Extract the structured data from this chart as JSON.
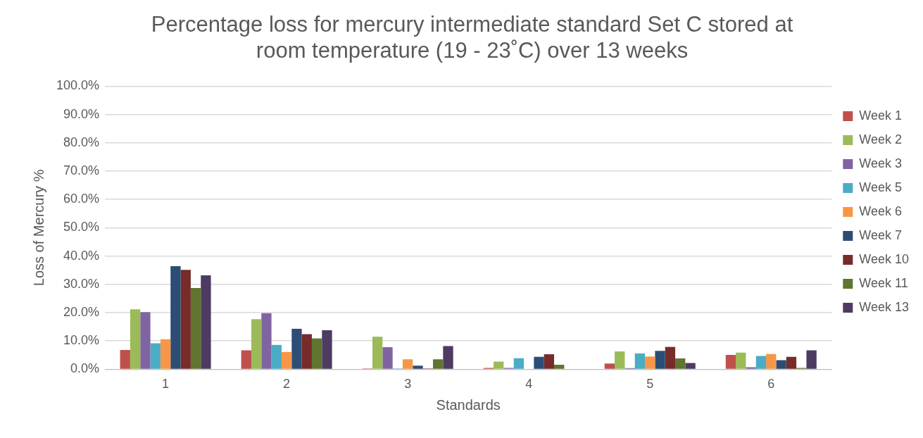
{
  "chart_data": {
    "type": "bar",
    "title": [
      "Percentage loss for mercury intermediate standard Set C stored at",
      "room temperature (19 - 23˚C) over 13 weeks"
    ],
    "xlabel": "Standards",
    "ylabel": "Loss of Mercury %",
    "categories": [
      "1",
      "2",
      "3",
      "4",
      "5",
      "6"
    ],
    "series": [
      {
        "name": "Week 1",
        "color": "#c0504d",
        "values": [
          6.8,
          6.7,
          0.3,
          0.5,
          2.0,
          5.1
        ]
      },
      {
        "name": "Week 2",
        "color": "#9bbb59",
        "values": [
          21.2,
          17.7,
          11.5,
          2.7,
          6.3,
          5.9
        ]
      },
      {
        "name": "Week 3",
        "color": "#8064a2",
        "values": [
          20.2,
          19.8,
          7.8,
          0.5,
          0.4,
          0.7
        ]
      },
      {
        "name": "Week 5",
        "color": "#4bacc6",
        "values": [
          9.2,
          8.6,
          0.3,
          3.9,
          5.6,
          4.7
        ]
      },
      {
        "name": "Week 6",
        "color": "#f79646",
        "values": [
          10.6,
          6.1,
          3.5,
          0,
          4.5,
          5.4
        ]
      },
      {
        "name": "Week 7",
        "color": "#2c4d75",
        "values": [
          36.4,
          14.3,
          1.3,
          4.4,
          6.5,
          3.2
        ]
      },
      {
        "name": "Week 10",
        "color": "#772c2a",
        "values": [
          35.1,
          12.4,
          0.3,
          5.3,
          7.9,
          4.4
        ]
      },
      {
        "name": "Week 11",
        "color": "#5f7530",
        "values": [
          28.7,
          10.9,
          3.5,
          1.6,
          3.8,
          0.5
        ]
      },
      {
        "name": "Week 13",
        "color": "#4d3b62",
        "values": [
          33.2,
          13.8,
          8.2,
          null,
          2.2,
          6.7
        ]
      }
    ],
    "ylim": [
      0,
      100
    ],
    "yticks": [
      {
        "value": 0,
        "label": "0.0%"
      },
      {
        "value": 10,
        "label": "10.0%"
      },
      {
        "value": 20,
        "label": "20.0%"
      },
      {
        "value": 30,
        "label": "30.0%"
      },
      {
        "value": 40,
        "label": "40.0%"
      },
      {
        "value": 50,
        "label": "50.0%"
      },
      {
        "value": 60,
        "label": "60.0%"
      },
      {
        "value": 70,
        "label": "70.0%"
      },
      {
        "value": 80,
        "label": "80.0%"
      },
      {
        "value": 90,
        "label": "90.0%"
      },
      {
        "value": 100,
        "label": "100.0%"
      }
    ],
    "grid": "y",
    "legend": "right"
  }
}
